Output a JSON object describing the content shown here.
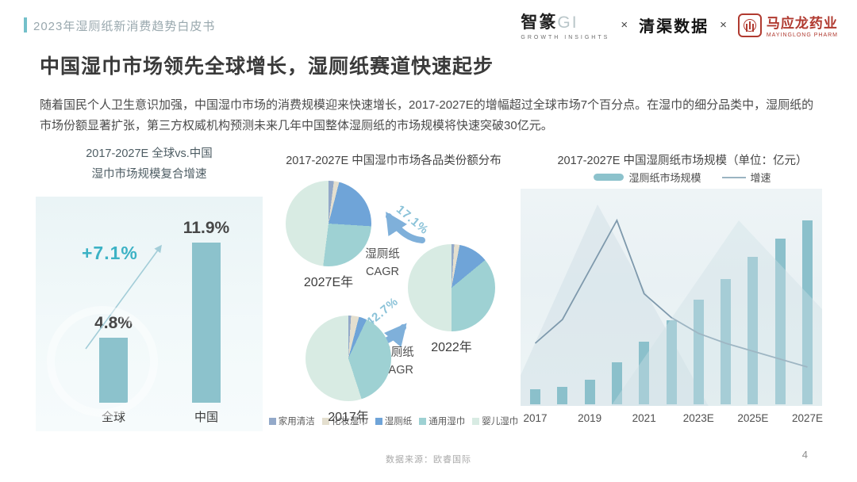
{
  "header": {
    "doc_title": "2023年湿厕纸新消费趋势白皮书",
    "logos": {
      "zhizhuan_main": "智篆",
      "zhizhuan_gi": "GI",
      "zhizhuan_sub": "GROWTH INSIGHTS",
      "separator": "×",
      "qingqu": "清渠数据",
      "mayinglong_main": "马应龙药业",
      "mayinglong_sub": "MAYINGLONG PHARM"
    }
  },
  "title": "中国湿巾市场领先全球增长，湿厕纸赛道快速起步",
  "paragraph": "随着国民个人卫生意识加强，中国湿巾市场的消费规模迎来快速增长，2017-2027E的增幅超过全球市场7个百分点。在湿巾的细分品类中，湿厕纸的市场份额显著扩张，第三方权威机构预测未来几年中国整体湿厕纸的市场规模将快速突破30亿元。",
  "footer": {
    "source": "数据来源：欧睿国际",
    "page": "4"
  },
  "colors": {
    "accent_teal": "#3cb2c5",
    "bar_teal": "#8cc2cc",
    "growth_line": "#7e99ac",
    "arrow_blue": "#7fb0da",
    "pct_text_blue": "#8ac2d8",
    "brand_red": "#b03a30",
    "pie_palette": [
      "#93a9c9",
      "#e4dfcf",
      "#6fa4d8",
      "#9ed1d3",
      "#d8ebe3"
    ]
  },
  "chart_data": [
    {
      "type": "bar",
      "title_line1": "2017-2027E 全球vs.中国",
      "title_line2": "湿巾市场规模复合增速",
      "categories": [
        "全球",
        "中国"
      ],
      "values": [
        4.8,
        11.9
      ],
      "value_labels": [
        "4.8%",
        "11.9%"
      ],
      "annotation": "+7.1%",
      "ylim": [
        0,
        12
      ],
      "grid": false,
      "legend_position": "none"
    },
    {
      "type": "pie",
      "title": "2017-2027E 中国湿巾市场各品类份额分布",
      "legend": [
        "家用清洁",
        "化妆湿巾",
        "湿厕纸",
        "通用湿巾",
        "婴儿湿巾"
      ],
      "legend_colors": [
        "#93a9c9",
        "#e4dfcf",
        "#6fa4d8",
        "#9ed1d3",
        "#d8ebe3"
      ],
      "legend_position": "bottom",
      "pies": [
        {
          "label": "2017年",
          "values_pct": [
            1,
            3,
            3,
            38,
            55
          ]
        },
        {
          "label": "2022年",
          "values_pct": [
            1,
            2,
            11,
            36,
            50
          ]
        },
        {
          "label": "2027E年",
          "values_pct": [
            2,
            2,
            22,
            26,
            48
          ]
        }
      ],
      "arrows": [
        {
          "from": "2017年",
          "to": "2022年",
          "label": "42.7%",
          "caption_line1": "湿厕纸",
          "caption_line2": "CAGR"
        },
        {
          "from": "2022年",
          "to": "2027E年",
          "label": "17.1%",
          "caption_line1": "湿厕纸",
          "caption_line2": "CAGR"
        }
      ]
    },
    {
      "type": "bar+line",
      "title": "2017-2027E 中国湿厕纸市场规模（单位：亿元）",
      "legend": {
        "bar": "湿厕纸市场规模",
        "line": "增速"
      },
      "x": [
        "2017",
        "2018",
        "2019",
        "2020",
        "2021",
        "2022",
        "2023E",
        "2024E",
        "2025E",
        "2026E",
        "2027E"
      ],
      "bar_series_name": "湿厕纸市场规模",
      "bar_values_est": [
        2.4,
        2.8,
        4.0,
        6.9,
        10.2,
        13.7,
        17.1,
        20.4,
        24.0,
        27.0,
        30.0
      ],
      "bar_unit": "亿元",
      "bar_ylim": [
        0,
        31
      ],
      "line_series_name": "增速",
      "line_values_est_pct": [
        30,
        42,
        67,
        92,
        55,
        43,
        35,
        30,
        26,
        22,
        18
      ],
      "x_tick_labels": [
        "2017",
        "2019",
        "2021",
        "2023E",
        "2025E",
        "2027E"
      ],
      "x_tick_indices": [
        0,
        2,
        4,
        6,
        8,
        10
      ],
      "grid": false,
      "legend_position": "top"
    }
  ]
}
